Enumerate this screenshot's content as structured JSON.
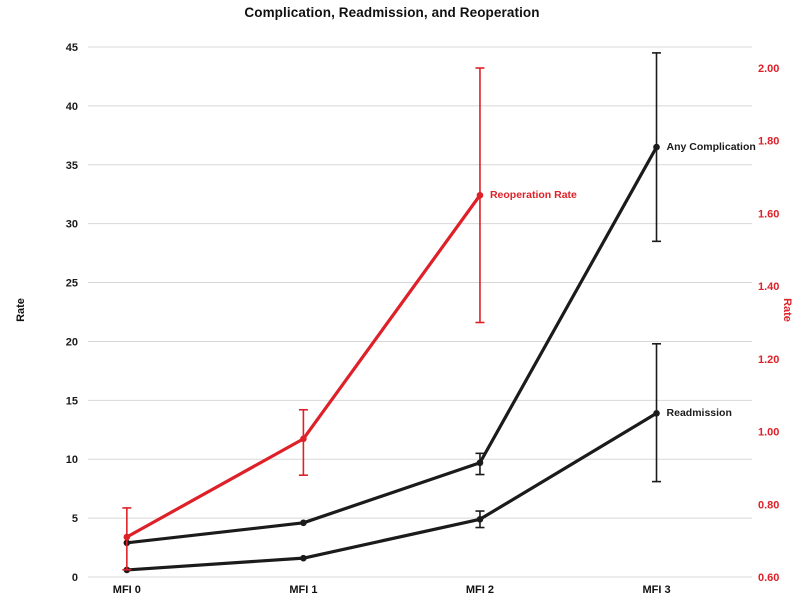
{
  "page": {
    "background": "#ffffff"
  },
  "colors": {
    "black": "#1b1b1b",
    "red": "#de2128",
    "grid": "#d8d8d8"
  },
  "chart_data": {
    "type": "line",
    "title": "Complication, Readmission, and Reoperation",
    "categories": [
      "MFI 0",
      "MFI 1",
      "MFI 2",
      "MFI 3"
    ],
    "grid": true,
    "legend_position": "inline-annotations",
    "left_axis": {
      "label": "Rate",
      "min": 0,
      "max": 45,
      "ticks": [
        0,
        5,
        10,
        15,
        20,
        25,
        30,
        35,
        40,
        45
      ],
      "tick_labels": [
        "0",
        "5",
        "10",
        "15",
        "20",
        "25",
        "30",
        "35",
        "40",
        "45"
      ],
      "color": "#1b1b1b"
    },
    "right_axis": {
      "label": "Rate",
      "min": 0.6,
      "max": 2.0,
      "ticks": [
        0.6,
        0.8,
        1.0,
        1.2,
        1.4,
        1.6,
        1.8,
        2.0
      ],
      "tick_labels": [
        "0.60",
        "0.80",
        "1.00",
        "1.20",
        "1.40",
        "1.60",
        "1.80",
        "2.00"
      ],
      "color": "#de2128"
    },
    "series": [
      {
        "name": "Any Complication",
        "axis": "left",
        "color": "#1b1b1b",
        "values": [
          2.9,
          4.6,
          9.7,
          36.5
        ],
        "error_low": [
          null,
          null,
          8.7,
          28.5
        ],
        "error_high": [
          null,
          null,
          10.5,
          44.5
        ],
        "label_at": 3
      },
      {
        "name": "Readmission",
        "axis": "left",
        "color": "#1b1b1b",
        "values": [
          0.6,
          1.6,
          4.9,
          13.9
        ],
        "error_low": [
          null,
          null,
          4.2,
          8.1
        ],
        "error_high": [
          null,
          null,
          5.6,
          19.8
        ],
        "label_at": 3
      },
      {
        "name": "Reoperation Rate",
        "axis": "right",
        "color": "#de2128",
        "values": [
          0.71,
          0.98,
          1.65,
          null
        ],
        "error_low": [
          0.62,
          0.88,
          1.3,
          null
        ],
        "error_high": [
          0.79,
          1.06,
          2.0,
          null
        ],
        "label_at": 2
      }
    ]
  }
}
